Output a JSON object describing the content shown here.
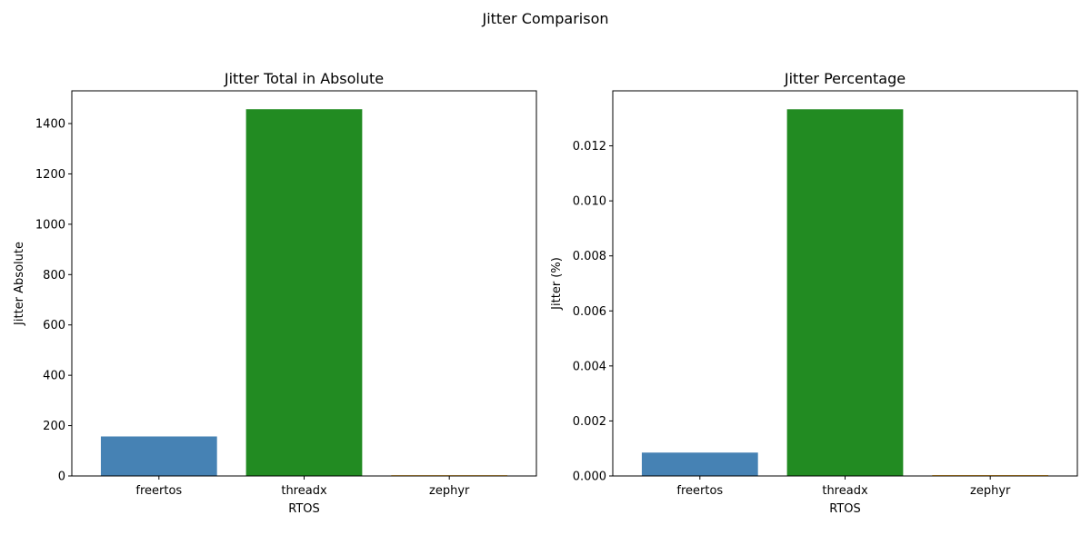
{
  "figure": {
    "suptitle": "Jitter Comparison"
  },
  "chart_data": [
    {
      "type": "bar",
      "title": "Jitter Total in Absolute",
      "xlabel": "RTOS",
      "ylabel": "Jitter Absolute",
      "categories": [
        "freertos",
        "threadx",
        "zephyr"
      ],
      "values": [
        157,
        1457,
        3
      ],
      "colors": [
        "#4682b4",
        "#228b22",
        "#ffa500"
      ],
      "ylim": [
        0,
        1530
      ],
      "yticks": [
        0,
        200,
        400,
        600,
        800,
        1000,
        1200,
        1400
      ],
      "ytick_labels": [
        "0",
        "200",
        "400",
        "600",
        "800",
        "1000",
        "1200",
        "1400"
      ],
      "grid": false
    },
    {
      "type": "bar",
      "title": "Jitter Percentage",
      "xlabel": "RTOS",
      "ylabel": "Jitter (%)",
      "categories": [
        "freertos",
        "threadx",
        "zephyr"
      ],
      "values": [
        0.00085,
        0.01333,
        3e-05
      ],
      "colors": [
        "#4682b4",
        "#228b22",
        "#ffa500"
      ],
      "ylim": [
        0,
        0.014
      ],
      "yticks": [
        0,
        0.002,
        0.004,
        0.006,
        0.008,
        0.01,
        0.012
      ],
      "ytick_labels": [
        "0.000",
        "0.002",
        "0.004",
        "0.006",
        "0.008",
        "0.010",
        "0.012"
      ],
      "grid": false
    }
  ]
}
